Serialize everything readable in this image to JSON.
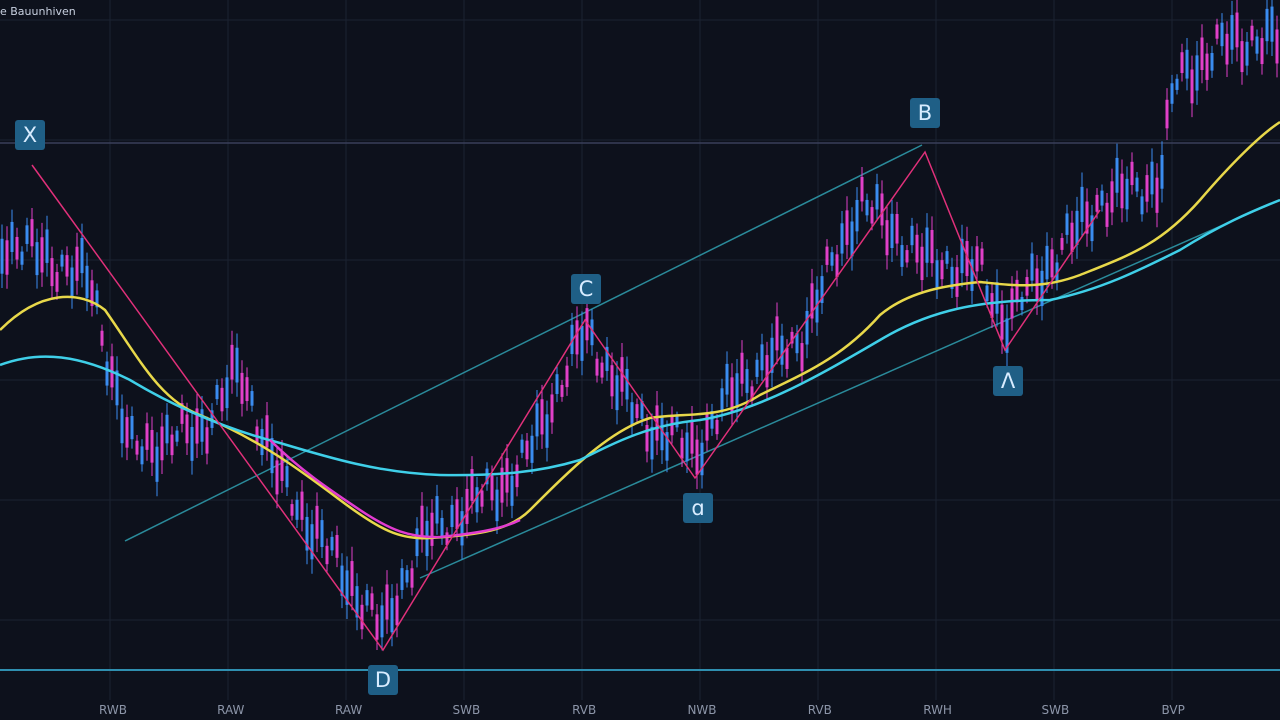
{
  "header": {
    "title": "e Bauunhiven"
  },
  "pattern_labels": [
    "X",
    "B",
    "C",
    "ɑ",
    "Λ",
    "D"
  ],
  "x_axis": {
    "labels": [
      "RWB",
      "RAW",
      "RAW",
      "SWB",
      "RVB",
      "NWB",
      "RVB",
      "RWH",
      "SWB",
      "BVP"
    ]
  }
}
